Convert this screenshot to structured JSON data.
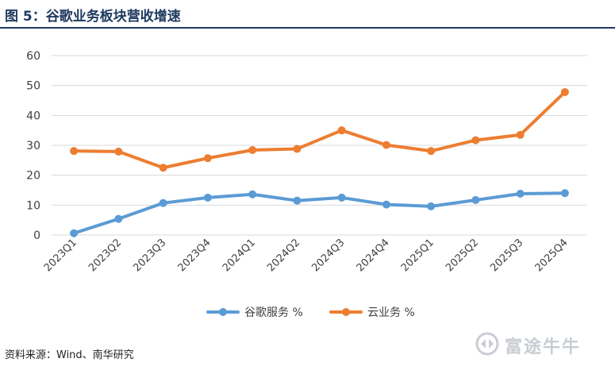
{
  "figure": {
    "title": "图 5：谷歌业务板块营收增速",
    "source": "资料来源：Wind、南华研究",
    "watermark": "富途牛牛"
  },
  "colors": {
    "title": "#1f3a5f",
    "google_services": "#5b9bd5",
    "cloud": "#ed7d31",
    "grid": "#d9d9d9"
  },
  "chart_data": {
    "type": "line",
    "categories": [
      "2023Q1",
      "2023Q2",
      "2023Q3",
      "2023Q4",
      "2024Q1",
      "2024Q2",
      "2024Q3",
      "2024Q4",
      "2025Q1",
      "2025Q2",
      "2025Q3",
      "2025Q4"
    ],
    "series": [
      {
        "name": "谷歌服务 %",
        "color": "#5b9bd5",
        "values": [
          0.6,
          5.4,
          10.7,
          12.5,
          13.6,
          11.5,
          12.5,
          10.2,
          9.6,
          11.7,
          13.8,
          14.0
        ]
      },
      {
        "name": "云业务 %",
        "color": "#ed7d31",
        "values": [
          28.1,
          27.9,
          22.5,
          25.7,
          28.4,
          28.8,
          35.0,
          30.1,
          28.1,
          31.7,
          33.5,
          47.8
        ]
      }
    ],
    "xlabel": "",
    "ylabel": "",
    "ylim": [
      0,
      60
    ],
    "yticks": [
      0,
      10,
      20,
      30,
      40,
      50,
      60
    ],
    "grid": true,
    "legend": "bottom"
  }
}
